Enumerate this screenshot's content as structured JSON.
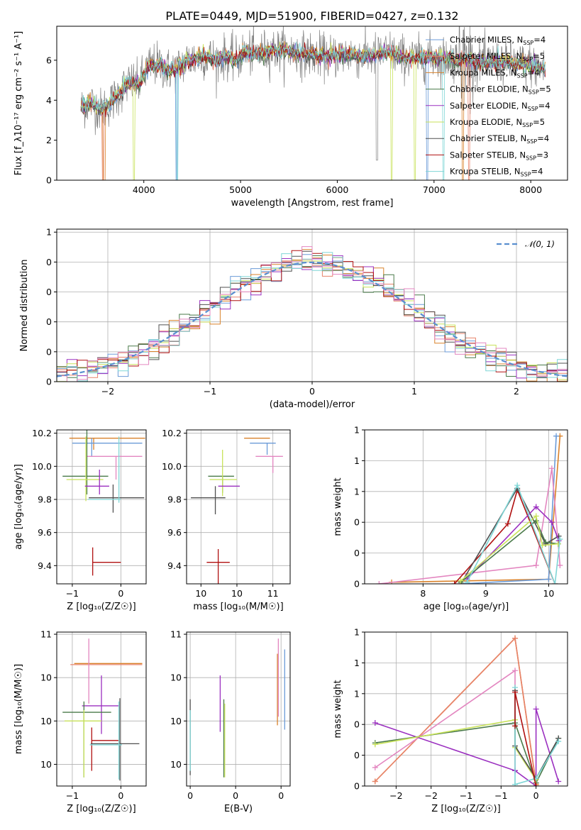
{
  "figure": {
    "title": "PLATE=0449, MJD=51900, FIBERID=0427, z=0.132"
  },
  "colors": {
    "chabrier_miles": "#6b9bd8",
    "salpeter_miles": "#e8836b",
    "kroupa_miles": "#d9822b",
    "chabrier_elodie": "#4a7a4a",
    "salpeter_elodie": "#9b30c0",
    "kroupa_elodie": "#c8e25a",
    "chabrier_stelib": "#505050",
    "salpeter_stelib": "#b01010",
    "kroupa_stelib": "#7fd6d6",
    "pink": "#e386c0",
    "data": "#808080"
  },
  "chart_data": [
    {
      "id": "spectrum",
      "type": "line",
      "xlabel": "wavelength [Angstrom, rest frame]",
      "ylabel": "Flux [f_λ10⁻¹⁷ erg cm⁻² s⁻¹ A⁻¹]",
      "xlim": [
        3100,
        8380
      ],
      "ylim": [
        0,
        7.7
      ],
      "xticks": [
        4000,
        5000,
        6000,
        7000,
        8000
      ],
      "yticks": [
        0,
        2,
        4,
        6
      ],
      "series": [
        {
          "name": "Chabrier MILES, N_SSP=4",
          "color_key": "chabrier_miles"
        },
        {
          "name": "Salpeter MILES, N_SSP=5",
          "color_key": "salpeter_miles"
        },
        {
          "name": "Kroupa MILES, N_SSP=4",
          "color_key": "kroupa_miles"
        },
        {
          "name": "Chabrier ELODIE, N_SSP=5",
          "color_key": "chabrier_elodie"
        },
        {
          "name": "Salpeter ELODIE, N_SSP=4",
          "color_key": "salpeter_elodie"
        },
        {
          "name": "Kroupa ELODIE, N_SSP=5",
          "color_key": "kroupa_elodie"
        },
        {
          "name": "Chabrier STELIB, N_SSP=4",
          "color_key": "chabrier_stelib"
        },
        {
          "name": "Salpeter STELIB, N_SSP=3",
          "color_key": "salpeter_stelib"
        },
        {
          "name": "Kroupa STELIB, N_SSP=4",
          "color_key": "kroupa_stelib"
        }
      ],
      "model_shape": {
        "x": [
          3350,
          3450,
          3550,
          3650,
          3750,
          3850,
          3950,
          4050,
          4150,
          4250,
          4350,
          4450,
          4550,
          4650,
          4750,
          4850,
          4950,
          5050,
          5150,
          5250,
          5350,
          5450,
          5550,
          5650,
          5750,
          5850,
          5950,
          6050,
          6150,
          6250,
          6350,
          6450,
          6550,
          6650,
          6750,
          6850,
          6950,
          7050,
          7150,
          7250,
          7350,
          7450,
          7550,
          7650,
          7750,
          7850,
          7950,
          8050,
          8150
        ],
        "y": [
          3.6,
          3.9,
          3.5,
          3.8,
          4.4,
          4.9,
          4.8,
          5.7,
          5.8,
          5.5,
          5.6,
          6.0,
          6.1,
          6.2,
          6.0,
          6.2,
          6.0,
          6.4,
          6.3,
          6.4,
          6.5,
          6.5,
          6.4,
          6.3,
          6.3,
          6.2,
          6.2,
          6.3,
          6.3,
          6.2,
          6.2,
          6.3,
          6.4,
          6.2,
          6.1,
          6.1,
          6.2,
          6.1,
          6.1,
          6.0,
          6.0,
          5.9,
          5.9,
          5.9,
          5.9,
          5.8,
          5.8,
          5.7,
          5.5
        ]
      }
    },
    {
      "id": "residuals",
      "type": "line",
      "xlabel": "(data-model)/error",
      "ylabel": "Normed distribution",
      "xlim": [
        -2.5,
        2.5
      ],
      "ylim": [
        0,
        0.51
      ],
      "xticks": [
        -2,
        -1,
        0,
        1,
        2
      ],
      "yticks": [
        0.0,
        0.1,
        0.2,
        0.3,
        0.4,
        0.5
      ],
      "legend": "𝒩(0, 1)",
      "legend_placement": "top-right",
      "grid": true
    },
    {
      "id": "age_vs_Z",
      "type": "scatter",
      "xlabel": "Z [log₁₀(Z/Z☉)]",
      "ylabel": "age  [log₁₀(age/yr)]",
      "xlim": [
        -0.66,
        0.26
      ],
      "ylim": [
        9.29,
        10.22
      ],
      "xticks": [
        -0.5,
        0.0
      ],
      "yticks": [
        9.4,
        9.6,
        9.8,
        10.0,
        10.2
      ],
      "grid": true,
      "crosses": [
        {
          "color_key": "kroupa_miles",
          "x": -0.28,
          "xerr": [
            0.25,
            0.53
          ],
          "y": 10.17,
          "yerr": [
            0.07,
            0.0
          ]
        },
        {
          "color_key": "chabrier_miles",
          "x": -0.3,
          "xerr": [
            0.2,
            0.52
          ],
          "y": 10.14,
          "yerr": [
            0.08,
            0.03
          ]
        },
        {
          "color_key": "pink",
          "x": -0.05,
          "xerr": [
            0.3,
            0.27
          ],
          "y": 10.06,
          "yerr": [
            0.14,
            0.0
          ]
        },
        {
          "color_key": "chabrier_elodie",
          "x": -0.35,
          "xerr": [
            0.25,
            0.22
          ],
          "y": 9.94,
          "yerr": [
            0.11,
            0.28
          ]
        },
        {
          "color_key": "kroupa_elodie",
          "x": -0.36,
          "xerr": [
            0.2,
            0.18
          ],
          "y": 9.92,
          "yerr": [
            0.13,
            0.26
          ]
        },
        {
          "color_key": "salpeter_elodie",
          "x": -0.22,
          "xerr": [
            0.15,
            0.1
          ],
          "y": 9.88,
          "yerr": [
            0.05,
            0.1
          ]
        },
        {
          "color_key": "chabrier_stelib",
          "x": -0.08,
          "xerr": [
            0.25,
            0.32
          ],
          "y": 9.81,
          "yerr": [
            0.09,
            0.08
          ]
        },
        {
          "color_key": "kroupa_stelib",
          "x": -0.02,
          "xerr": [
            0.32,
            0.02
          ],
          "y": 9.8,
          "yerr": [
            0.02,
            0.38
          ]
        },
        {
          "color_key": "salpeter_stelib",
          "x": -0.29,
          "xerr": [
            0.0,
            0.29
          ],
          "y": 9.42,
          "yerr": [
            0.08,
            0.09
          ]
        }
      ]
    },
    {
      "id": "age_vs_mass",
      "type": "scatter",
      "xlabel": "mass [log₁₀(M/M☉)]",
      "ylabel": "",
      "xlim": [
        9.9,
        10.62
      ],
      "ylim": [
        9.29,
        10.22
      ],
      "xticks": [
        10.0,
        10.25,
        10.5
      ],
      "yticks": [
        9.4,
        9.6,
        9.8,
        10.0,
        10.2
      ],
      "grid": true,
      "crosses": [
        {
          "color_key": "kroupa_miles",
          "x": 10.45,
          "xerr": [
            0.15,
            0.03
          ],
          "y": 10.17,
          "yerr": [
            0.0,
            0.0
          ]
        },
        {
          "color_key": "chabrier_miles",
          "x": 10.46,
          "xerr": [
            0.12,
            0.06
          ],
          "y": 10.14,
          "yerr": [
            0.07,
            0.0
          ]
        },
        {
          "color_key": "pink",
          "x": 10.5,
          "xerr": [
            0.12,
            0.07
          ],
          "y": 10.06,
          "yerr": [
            0.1,
            0.0
          ]
        },
        {
          "color_key": "chabrier_elodie",
          "x": 10.15,
          "xerr": [
            0.1,
            0.08
          ],
          "y": 9.94,
          "yerr": [
            0.1,
            0.0
          ]
        },
        {
          "color_key": "kroupa_elodie",
          "x": 10.15,
          "xerr": [
            0.09,
            0.1
          ],
          "y": 9.92,
          "yerr": [
            0.1,
            0.18
          ]
        },
        {
          "color_key": "salpeter_elodie",
          "x": 10.2,
          "xerr": [
            0.08,
            0.07
          ],
          "y": 9.88,
          "yerr": [
            0.0,
            0.0
          ]
        },
        {
          "color_key": "chabrier_stelib",
          "x": 10.1,
          "xerr": [
            0.17,
            0.07
          ],
          "y": 9.81,
          "yerr": [
            0.1,
            0.07
          ]
        },
        {
          "color_key": "salpeter_stelib",
          "x": 10.12,
          "xerr": [
            0.08,
            0.08
          ],
          "y": 9.42,
          "yerr": [
            0.39,
            0.08
          ]
        }
      ]
    },
    {
      "id": "weight_vs_age",
      "type": "line",
      "xlabel": "age  [log₁₀(age/yr)]",
      "ylabel": "mass weight",
      "xlim": [
        7.07,
        10.3
      ],
      "ylim": [
        0,
        1.0
      ],
      "xticks": [
        8,
        9,
        10
      ],
      "yticks": [
        0.0,
        0.2,
        0.4,
        0.6,
        0.8,
        1.0
      ],
      "grid": true,
      "series": [
        {
          "color_key": "kroupa_miles",
          "x": [
            7.5,
            10.0,
            10.18
          ],
          "y": [
            0.01,
            0.03,
            0.96
          ]
        },
        {
          "color_key": "chabrier_miles",
          "x": [
            8.6,
            10.0,
            10.12
          ],
          "y": [
            0.0,
            0.03,
            0.96
          ]
        },
        {
          "color_key": "pink",
          "x": [
            7.3,
            9.8,
            10.05,
            10.18
          ],
          "y": [
            0.0,
            0.12,
            0.75,
            0.12
          ]
        },
        {
          "color_key": "salpeter_stelib",
          "x": [
            8.5,
            9.35,
            9.5,
            10.1
          ],
          "y": [
            0.0,
            0.39,
            0.61,
            0.0
          ]
        },
        {
          "color_key": "chabrier_stelib",
          "x": [
            8.6,
            9.5,
            9.95,
            10.16
          ],
          "y": [
            0.0,
            0.62,
            0.26,
            0.31
          ]
        },
        {
          "color_key": "salpeter_elodie",
          "x": [
            8.7,
            9.8,
            10.05,
            10.16
          ],
          "y": [
            0.03,
            0.5,
            0.4,
            0.28
          ]
        },
        {
          "color_key": "chabrier_elodie",
          "x": [
            8.6,
            9.8,
            9.95,
            10.15
          ],
          "y": [
            0.01,
            0.41,
            0.27,
            0.26
          ]
        },
        {
          "color_key": "kroupa_elodie",
          "x": [
            8.6,
            9.8,
            9.9,
            10.15
          ],
          "y": [
            0.02,
            0.44,
            0.25,
            0.26
          ]
        },
        {
          "color_key": "kroupa_stelib",
          "x": [
            8.7,
            9.5,
            10.1,
            10.18
          ],
          "y": [
            0.01,
            0.64,
            0.0,
            0.29
          ]
        }
      ]
    },
    {
      "id": "mass_vs_Z",
      "type": "scatter",
      "xlabel": "Z [log₁₀(Z/Z☉)]",
      "ylabel": "mass [log₁₀(M/M☉)]",
      "xlim": [
        -0.66,
        0.26
      ],
      "ylim": [
        9.9,
        10.61
      ],
      "xticks": [
        -0.5,
        0.0
      ],
      "yticks": [
        10.0,
        10.2,
        10.4,
        10.6
      ],
      "grid": true,
      "crosses": [
        {
          "color_key": "salpeter_miles",
          "x": -0.3,
          "xerr": [
            0.22,
            0.52
          ],
          "y": 10.46,
          "yerr": [
            0.0,
            0.0
          ]
        },
        {
          "color_key": "kroupa_miles",
          "x": -0.28,
          "xerr": [
            0.2,
            0.5
          ],
          "y": 10.465,
          "yerr": [
            0.0,
            0.0
          ]
        },
        {
          "color_key": "pink",
          "x": -0.33,
          "xerr": [
            0.0,
            0.0
          ],
          "y": 10.4,
          "yerr": [
            0.12,
            0.18
          ]
        },
        {
          "color_key": "salpeter_elodie",
          "x": -0.2,
          "xerr": [
            0.2,
            0.18
          ],
          "y": 10.27,
          "yerr": [
            0.13,
            0.14
          ]
        },
        {
          "color_key": "chabrier_elodie",
          "x": -0.38,
          "xerr": [
            0.22,
            0.28
          ],
          "y": 10.24,
          "yerr": [
            0.3,
            0.05
          ]
        },
        {
          "color_key": "kroupa_elodie",
          "x": -0.38,
          "xerr": [
            0.2,
            0.18
          ],
          "y": 10.2,
          "yerr": [
            0.26,
            0.05
          ]
        },
        {
          "color_key": "salpeter_stelib",
          "x": -0.3,
          "xerr": [
            0.0,
            0.28
          ],
          "y": 10.11,
          "yerr": [
            0.14,
            0.06
          ]
        },
        {
          "color_key": "chabrier_stelib",
          "x": -0.01,
          "xerr": [
            0.3,
            0.2
          ],
          "y": 10.095,
          "yerr": [
            0.17,
            0.21
          ]
        },
        {
          "color_key": "kroupa_stelib",
          "x": -0.02,
          "xerr": [
            0.3,
            0.03
          ],
          "y": 10.09,
          "yerr": [
            0.16,
            0.2
          ]
        }
      ]
    },
    {
      "id": "mass_vs_ebv",
      "type": "scatter",
      "xlabel": "E(B-V)",
      "ylabel": "",
      "xlim": [
        -0.004,
        0.11
      ],
      "ylim": [
        9.9,
        10.61
      ],
      "xticks": [
        0.0,
        0.05,
        0.1
      ],
      "yticks": [
        10.0,
        10.2,
        10.4,
        10.6
      ],
      "grid": true,
      "crosses": [
        {
          "color_key": "chabrier_stelib",
          "x": 0.0,
          "y": 10.15,
          "yerr": [
            0.2,
            0.15
          ]
        },
        {
          "color_key": "kroupa_stelib",
          "x": 0.0,
          "y": 10.12,
          "yerr": [
            0.15,
            0.13
          ]
        },
        {
          "color_key": "salpeter_elodie",
          "x": 0.033,
          "y": 10.28,
          "yerr": [
            0.13,
            0.13
          ]
        },
        {
          "color_key": "chabrier_elodie",
          "x": 0.037,
          "y": 10.1,
          "yerr": [
            0.16,
            0.2
          ]
        },
        {
          "color_key": "kroupa_elodie",
          "x": 0.038,
          "y": 10.12,
          "yerr": [
            0.18,
            0.16
          ]
        },
        {
          "color_key": "kroupa_miles",
          "x": 0.096,
          "y": 10.36,
          "yerr": [
            0.18,
            0.15
          ]
        },
        {
          "color_key": "pink",
          "x": 0.097,
          "y": 10.42,
          "yerr": [
            0.2,
            0.16
          ]
        },
        {
          "color_key": "chabrier_miles",
          "x": 0.104,
          "y": 10.35,
          "yerr": [
            0.19,
            0.18
          ]
        }
      ]
    },
    {
      "id": "weight_vs_Z",
      "type": "line",
      "xlabel": "Z [log₁₀(Z/Z☉)]",
      "ylabel": "mass weight",
      "xlim": [
        -2.45,
        0.45
      ],
      "ylim": [
        0,
        1.0
      ],
      "xticks": [
        -2.0,
        -1.5,
        -1.0,
        -0.5,
        0.0
      ],
      "yticks": [
        0.0,
        0.2,
        0.4,
        0.6,
        0.8,
        1.0
      ],
      "grid": true,
      "series": [
        {
          "color_key": "kroupa_miles",
          "x": [
            -2.3,
            -0.3,
            0.0
          ],
          "y": [
            0.03,
            0.96,
            0.01
          ]
        },
        {
          "color_key": "salpeter_miles",
          "x": [
            -2.3,
            -0.3,
            0.0
          ],
          "y": [
            0.03,
            0.96,
            0.02
          ]
        },
        {
          "color_key": "pink",
          "x": [
            -2.3,
            -0.3,
            -0.3
          ],
          "y": [
            0.12,
            0.75,
            0.1
          ]
        },
        {
          "color_key": "salpeter_elodie",
          "x": [
            -2.3,
            -0.3,
            0.0,
            0.0,
            0.32
          ],
          "y": [
            0.41,
            0.1,
            0.0,
            0.5,
            0.03
          ]
        },
        {
          "color_key": "chabrier_elodie",
          "x": [
            -2.3,
            -0.3,
            0.0,
            0.32
          ],
          "y": [
            0.28,
            0.41,
            0.02,
            0.31
          ]
        },
        {
          "color_key": "kroupa_elodie",
          "x": [
            -2.3,
            -0.3,
            -0.3,
            0.0
          ],
          "y": [
            0.27,
            0.43,
            0.25,
            0.04
          ]
        },
        {
          "color_key": "chabrier_stelib",
          "x": [
            -0.3,
            -0.3,
            0.0,
            0.32
          ],
          "y": [
            0.62,
            0.26,
            0.05,
            0.31
          ]
        },
        {
          "color_key": "kroupa_stelib",
          "x": [
            -0.3,
            -0.3,
            0.0,
            0.32
          ],
          "y": [
            0.64,
            0.01,
            0.05,
            0.29
          ]
        },
        {
          "color_key": "salpeter_stelib",
          "x": [
            -0.3,
            -0.3,
            0.0
          ],
          "y": [
            0.39,
            0.61,
            0.0
          ]
        }
      ]
    }
  ]
}
